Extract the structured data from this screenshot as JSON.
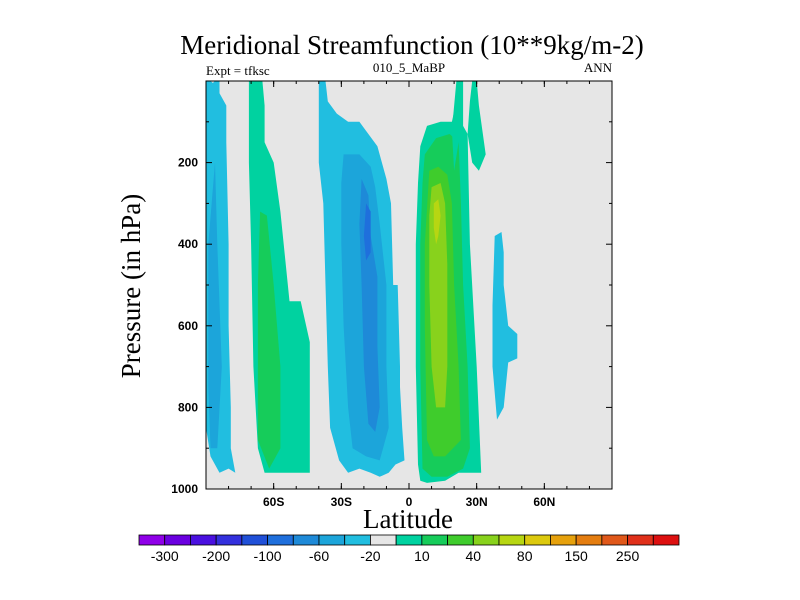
{
  "chart_data": {
    "type": "contour",
    "title": "Meridional Streamfunction (10**9kg/m-2)",
    "left_label": "Expt = tfksc",
    "center_label": "010_5_MaBP",
    "right_label": "ANN",
    "xlabel": "Latitude",
    "ylabel": "Pressure (in hPa)",
    "xlim": [
      -90,
      90
    ],
    "ylim": [
      0,
      1000
    ],
    "x_ticks": [
      {
        "value": -60,
        "label": "60S"
      },
      {
        "value": -30,
        "label": "30S"
      },
      {
        "value": 0,
        "label": "0"
      },
      {
        "value": 30,
        "label": "30N"
      },
      {
        "value": 60,
        "label": "60N"
      }
    ],
    "y_ticks": [
      {
        "value": 200,
        "label": "200"
      },
      {
        "value": 400,
        "label": "400"
      },
      {
        "value": 600,
        "label": "600"
      },
      {
        "value": 800,
        "label": "800"
      },
      {
        "value": 1000,
        "label": "1000"
      }
    ],
    "background_color": "#e6e6e6",
    "colorbar": {
      "levels": [
        -300,
        -250,
        -200,
        -150,
        -100,
        -80,
        -60,
        -40,
        -20,
        -10,
        10,
        20,
        40,
        60,
        80,
        100,
        150,
        200,
        250,
        300
      ],
      "colors": [
        "#8f00e8",
        "#6a00e0",
        "#4a10e0",
        "#3330dd",
        "#2050d8",
        "#1f6fdc",
        "#1e8ad8",
        "#1ca5da",
        "#21bee0",
        "#e6e6e6",
        "#00d2a0",
        "#16cc5a",
        "#3fcc2c",
        "#88d21c",
        "#b7d612",
        "#dcc90e",
        "#e6a10c",
        "#e47d10",
        "#e0581a",
        "#e0301a",
        "#dd1010"
      ],
      "labels": [
        {
          "value": -300,
          "label": "-300"
        },
        {
          "value": -200,
          "label": "-200"
        },
        {
          "value": -100,
          "label": "-100"
        },
        {
          "value": -60,
          "label": "-60"
        },
        {
          "value": -20,
          "label": "-20"
        },
        {
          "value": 10,
          "label": "10"
        },
        {
          "value": 40,
          "label": "40"
        },
        {
          "value": 80,
          "label": "80"
        },
        {
          "value": 150,
          "label": "150"
        },
        {
          "value": 250,
          "label": "250"
        }
      ]
    },
    "regions": [
      {
        "name": "sh-polar-cell",
        "level": -20,
        "polygon": [
          [
            -90,
            0
          ],
          [
            -88,
            0
          ],
          [
            -87,
            5
          ],
          [
            -86,
            0
          ],
          [
            -84,
            0
          ],
          [
            -84,
            30
          ],
          [
            -81,
            60
          ],
          [
            -81,
            150
          ],
          [
            -80,
            400
          ],
          [
            -80,
            600
          ],
          [
            -79,
            800
          ],
          [
            -79,
            900
          ],
          [
            -77,
            960
          ],
          [
            -80,
            950
          ],
          [
            -84,
            960
          ],
          [
            -88,
            920
          ],
          [
            -90,
            850
          ]
        ]
      },
      {
        "name": "sh-polar-cell-inner",
        "level": -40,
        "polygon": [
          [
            -89,
            400
          ],
          [
            -86,
            200
          ],
          [
            -85,
            400
          ],
          [
            -83,
            700
          ],
          [
            -85,
            900
          ],
          [
            -88,
            900
          ],
          [
            -89,
            750
          ]
        ]
      },
      {
        "name": "sh-ferrel-cell",
        "level": 10,
        "polygon": [
          [
            -71,
            0
          ],
          [
            -65,
            0
          ],
          [
            -64,
            60
          ],
          [
            -64,
            150
          ],
          [
            -60,
            200
          ],
          [
            -57,
            320
          ],
          [
            -53,
            540
          ],
          [
            -48,
            540
          ],
          [
            -44,
            640
          ],
          [
            -44,
            850
          ],
          [
            -44,
            920
          ],
          [
            -44,
            960
          ],
          [
            -50,
            960
          ],
          [
            -56,
            960
          ],
          [
            -60,
            960
          ],
          [
            -64,
            960
          ],
          [
            -67,
            900
          ],
          [
            -69,
            700
          ],
          [
            -70,
            400
          ],
          [
            -71,
            200
          ],
          [
            -71,
            100
          ]
        ]
      },
      {
        "name": "sh-ferrel-cell-core",
        "level": 20,
        "polygon": [
          [
            -66,
            320
          ],
          [
            -63,
            330
          ],
          [
            -60,
            500
          ],
          [
            -57,
            700
          ],
          [
            -57,
            900
          ],
          [
            -62,
            950
          ],
          [
            -67,
            880
          ],
          [
            -67,
            700
          ],
          [
            -67,
            500
          ]
        ]
      },
      {
        "name": "sh-hadley-cell",
        "level": -20,
        "polygon": [
          [
            -40,
            0
          ],
          [
            -37,
            0
          ],
          [
            -36,
            50
          ],
          [
            -32,
            80
          ],
          [
            -27,
            100
          ],
          [
            -22,
            100
          ],
          [
            -14,
            160
          ],
          [
            -10,
            240
          ],
          [
            -8,
            300
          ],
          [
            -7,
            500
          ],
          [
            -5,
            500
          ],
          [
            -4,
            700
          ],
          [
            -4,
            750
          ],
          [
            -3,
            850
          ],
          [
            -2,
            930
          ],
          [
            -6,
            940
          ],
          [
            -9,
            960
          ],
          [
            -13,
            970
          ],
          [
            -17,
            960
          ],
          [
            -22,
            950
          ],
          [
            -27,
            960
          ],
          [
            -31,
            930
          ],
          [
            -35,
            850
          ],
          [
            -36,
            700
          ],
          [
            -37,
            500
          ],
          [
            -38,
            300
          ],
          [
            -40,
            200
          ]
        ]
      },
      {
        "name": "sh-hadley-cell-mid",
        "level": -40,
        "polygon": [
          [
            -29,
            180
          ],
          [
            -22,
            180
          ],
          [
            -17,
            210
          ],
          [
            -15,
            260
          ],
          [
            -13,
            350
          ],
          [
            -10,
            500
          ],
          [
            -10,
            700
          ],
          [
            -9,
            850
          ],
          [
            -13,
            930
          ],
          [
            -19,
            920
          ],
          [
            -25,
            900
          ],
          [
            -27,
            800
          ],
          [
            -29,
            600
          ],
          [
            -30,
            400
          ],
          [
            -30,
            250
          ]
        ]
      },
      {
        "name": "sh-hadley-cell-core",
        "level": -60,
        "polygon": [
          [
            -21,
            240
          ],
          [
            -18,
            280
          ],
          [
            -17,
            380
          ],
          [
            -14,
            480
          ],
          [
            -14,
            650
          ],
          [
            -13,
            800
          ],
          [
            -15,
            860
          ],
          [
            -18,
            840
          ],
          [
            -20,
            700
          ],
          [
            -21,
            500
          ],
          [
            -22,
            350
          ]
        ]
      },
      {
        "name": "sh-hadley-cell-max",
        "level": -80,
        "polygon": [
          [
            -19,
            300
          ],
          [
            -17,
            320
          ],
          [
            -17,
            420
          ],
          [
            -19,
            440
          ],
          [
            -20,
            380
          ]
        ]
      },
      {
        "name": "nh-hadley-cell",
        "level": 10,
        "polygon": [
          [
            5,
            160
          ],
          [
            8,
            110
          ],
          [
            14,
            100
          ],
          [
            19,
            100
          ],
          [
            23,
            0
          ],
          [
            24,
            0
          ],
          [
            24,
            110
          ],
          [
            26,
            130
          ],
          [
            27,
            400
          ],
          [
            30,
            700
          ],
          [
            32,
            960
          ],
          [
            27,
            960
          ],
          [
            22,
            960
          ],
          [
            16,
            980
          ],
          [
            8,
            985
          ],
          [
            5,
            980
          ],
          [
            4,
            940
          ],
          [
            3,
            700
          ],
          [
            3,
            400
          ],
          [
            4,
            250
          ]
        ]
      },
      {
        "name": "nh-hadley-cell-mid",
        "level": 20,
        "polygon": [
          [
            7,
            180
          ],
          [
            12,
            140
          ],
          [
            18,
            130
          ],
          [
            22,
            150
          ],
          [
            23,
            300
          ],
          [
            24,
            500
          ],
          [
            26,
            700
          ],
          [
            27,
            900
          ],
          [
            24,
            950
          ],
          [
            17,
            970
          ],
          [
            10,
            970
          ],
          [
            6,
            950
          ],
          [
            5,
            700
          ],
          [
            5,
            400
          ],
          [
            6,
            250
          ]
        ]
      },
      {
        "name": "nh-hadley-cell-inner",
        "level": 40,
        "polygon": [
          [
            9,
            220
          ],
          [
            13,
            210
          ],
          [
            17,
            230
          ],
          [
            19,
            300
          ],
          [
            20,
            500
          ],
          [
            22,
            700
          ],
          [
            23,
            880
          ],
          [
            16,
            920
          ],
          [
            11,
            920
          ],
          [
            8,
            880
          ],
          [
            7,
            600
          ],
          [
            7,
            400
          ]
        ]
      },
      {
        "name": "nh-hadley-cell-core",
        "level": 60,
        "polygon": [
          [
            10,
            260
          ],
          [
            14,
            250
          ],
          [
            16,
            300
          ],
          [
            17,
            450
          ],
          [
            17,
            700
          ],
          [
            16,
            800
          ],
          [
            12,
            800
          ],
          [
            10,
            700
          ],
          [
            9,
            500
          ],
          [
            9,
            330
          ]
        ]
      },
      {
        "name": "nh-hadley-cell-max",
        "level": 80,
        "polygon": [
          [
            11,
            300
          ],
          [
            13,
            290
          ],
          [
            14,
            330
          ],
          [
            13,
            380
          ],
          [
            12,
            400
          ],
          [
            11,
            360
          ]
        ]
      },
      {
        "name": "nh-upper-tongue",
        "level": 10,
        "polygon": [
          [
            28,
            0
          ],
          [
            30,
            0
          ],
          [
            31,
            60
          ],
          [
            34,
            180
          ],
          [
            31,
            220
          ],
          [
            28,
            200
          ],
          [
            26,
            130
          ],
          [
            27,
            50
          ]
        ]
      },
      {
        "name": "nh-upper-tongue-thin",
        "level": 10,
        "polygon": [
          [
            21,
            0
          ],
          [
            23,
            0
          ],
          [
            22,
            150
          ],
          [
            20,
            220
          ],
          [
            19,
            120
          ]
        ]
      },
      {
        "name": "nh-ferrel-cell",
        "level": -20,
        "polygon": [
          [
            38,
            380
          ],
          [
            41,
            370
          ],
          [
            42,
            420
          ],
          [
            42,
            500
          ],
          [
            44,
            600
          ],
          [
            48,
            620
          ],
          [
            48,
            680
          ],
          [
            44,
            690
          ],
          [
            42,
            800
          ],
          [
            39,
            830
          ],
          [
            37,
            700
          ],
          [
            37,
            550
          ]
        ]
      }
    ]
  }
}
